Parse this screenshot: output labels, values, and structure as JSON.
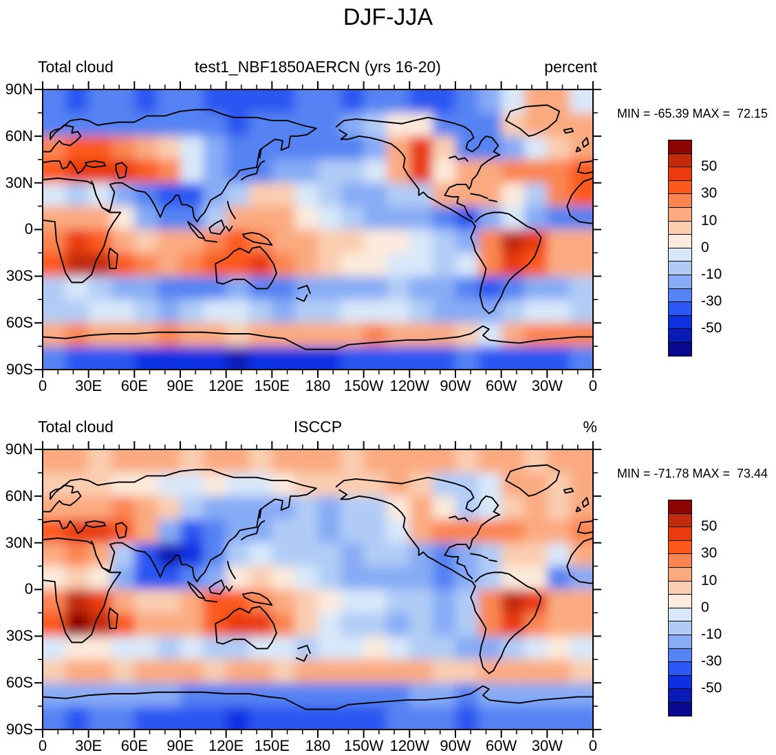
{
  "title": "DJF-JJA",
  "chart_data": {
    "type": "heatmap",
    "description": "Two filled-contour global lat-lon maps of total cloud amount seasonal difference (DJF minus JJA): model run vs ISCCP observations, with blue-red colorbars",
    "shared": {
      "levels": [
        -60,
        -50,
        -40,
        -30,
        -20,
        -10,
        -5,
        0,
        5,
        10,
        20,
        30,
        40,
        50,
        60
      ],
      "colors": [
        "#07098F",
        "#0A1AB6",
        "#0D30E3",
        "#2B57F2",
        "#5583F3",
        "#87ABF5",
        "#B0CCF6",
        "#D8E8FA",
        "#FCEADC",
        "#FACDB0",
        "#FBAA80",
        "#FB8551",
        "#FC5A1C",
        "#E93B0E",
        "#C22B0B",
        "#8E0404"
      ],
      "colorbar_labels": [
        "50",
        "30",
        "10",
        "0",
        "-10",
        "-30",
        "-50"
      ],
      "lat_ticks": [
        "90N",
        "60N",
        "30N",
        "0",
        "30S",
        "60S",
        "90S"
      ],
      "lon_ticks": [
        "0",
        "30E",
        "60E",
        "90E",
        "120E",
        "150E",
        "180",
        "150W",
        "120W",
        "90W",
        "60W",
        "30W",
        "0"
      ],
      "grid": {
        "lon_start": 0,
        "lon_step": 15,
        "lat_start": 90,
        "lat_step": -15,
        "cols": 24,
        "rows": 12
      },
      "coastline_color": "#000000",
      "units": "percent cloud amount difference"
    },
    "panels": [
      {
        "left_title": "Total cloud",
        "center_title": "test1_NBF1850AERCN (yrs 16-20)",
        "right_title": "percent",
        "stats": "MIN = -65.39 MAX =  72.15",
        "min": -65.39,
        "max": 72.15,
        "values": [
          [
            -30,
            -32,
            -30,
            -30,
            -32,
            -30,
            -30,
            -32,
            -35,
            -35,
            -32,
            -30,
            -30,
            -32,
            -30,
            -30,
            -35,
            -32,
            -30,
            -15,
            -5,
            10,
            15,
            -5
          ],
          [
            -25,
            -28,
            -30,
            -25,
            -25,
            -28,
            -30,
            -30,
            -32,
            -30,
            -28,
            -25,
            -25,
            -20,
            -10,
            0,
            0,
            -25,
            -25,
            -25,
            5,
            10,
            10,
            15
          ],
          [
            25,
            30,
            30,
            25,
            15,
            5,
            -5,
            -15,
            -25,
            -30,
            -28,
            -25,
            -28,
            -25,
            -15,
            10,
            40,
            5,
            -25,
            -25,
            -15,
            -5,
            5,
            15
          ],
          [
            35,
            40,
            45,
            45,
            35,
            20,
            -5,
            -15,
            -25,
            -30,
            -20,
            -12,
            -10,
            -10,
            -5,
            15,
            40,
            0,
            10,
            15,
            20,
            20,
            20,
            35
          ],
          [
            -5,
            -8,
            -5,
            -12,
            -28,
            -40,
            -35,
            -18,
            -8,
            5,
            5,
            -5,
            -10,
            -15,
            -12,
            -10,
            -10,
            10,
            10,
            10,
            0,
            -10,
            25,
            30
          ],
          [
            10,
            15,
            10,
            0,
            -12,
            -22,
            -25,
            -10,
            10,
            15,
            10,
            0,
            -5,
            -10,
            -15,
            -15,
            -20,
            -30,
            -35,
            -20,
            -5,
            -15,
            -30,
            -25
          ],
          [
            20,
            45,
            35,
            15,
            8,
            10,
            15,
            25,
            30,
            28,
            18,
            10,
            5,
            5,
            0,
            0,
            -5,
            -10,
            -15,
            20,
            55,
            45,
            15,
            10
          ],
          [
            30,
            55,
            50,
            30,
            20,
            15,
            20,
            30,
            38,
            40,
            25,
            10,
            5,
            0,
            0,
            -5,
            -5,
            -10,
            -5,
            25,
            45,
            30,
            15,
            15
          ],
          [
            -10,
            -5,
            -10,
            -15,
            -20,
            -22,
            -25,
            -25,
            -20,
            -25,
            -25,
            -20,
            -20,
            -15,
            -15,
            -10,
            -15,
            -20,
            -25,
            -35,
            -30,
            -20,
            -15,
            -10
          ],
          [
            -10,
            -8,
            -5,
            -5,
            -10,
            -12,
            -10,
            -5,
            -5,
            -10,
            -15,
            -10,
            -10,
            -5,
            -5,
            -5,
            -10,
            -12,
            -15,
            -20,
            -10,
            -5,
            -5,
            -10
          ],
          [
            15,
            20,
            15,
            10,
            15,
            20,
            15,
            10,
            5,
            10,
            15,
            10,
            10,
            15,
            20,
            15,
            10,
            15,
            5,
            -5,
            10,
            20,
            25,
            20
          ],
          [
            -30,
            -35,
            -35,
            -40,
            -42,
            -45,
            -45,
            -50,
            -55,
            -50,
            -45,
            -42,
            -45,
            -40,
            -38,
            -35,
            -40,
            -35,
            -30,
            -35,
            -40,
            -35,
            -32,
            -30
          ]
        ]
      },
      {
        "left_title": "Total cloud",
        "center_title": "ISCCP",
        "right_title": "%",
        "stats": "MIN = -71.78 MAX =  73.44",
        "min": -71.78,
        "max": 73.44,
        "values": [
          [
            10,
            10,
            8,
            10,
            12,
            10,
            8,
            10,
            10,
            8,
            10,
            12,
            10,
            8,
            10,
            10,
            12,
            10,
            8,
            10,
            10,
            8,
            10,
            10
          ],
          [
            5,
            5,
            5,
            0,
            0,
            -5,
            -5,
            0,
            -5,
            -5,
            0,
            5,
            5,
            5,
            8,
            10,
            5,
            -10,
            -10,
            -5,
            10,
            10,
            5,
            10
          ],
          [
            10,
            10,
            15,
            20,
            15,
            5,
            -10,
            -15,
            -20,
            -15,
            -15,
            -10,
            -12,
            -10,
            -8,
            0,
            10,
            0,
            -10,
            -5,
            5,
            10,
            8,
            10
          ],
          [
            30,
            45,
            45,
            30,
            10,
            -20,
            -35,
            -30,
            -20,
            -15,
            -10,
            -10,
            -12,
            -10,
            -8,
            -5,
            15,
            20,
            20,
            20,
            20,
            15,
            10,
            20
          ],
          [
            15,
            20,
            10,
            -10,
            -40,
            -55,
            -45,
            -25,
            -10,
            -5,
            -10,
            -10,
            -10,
            -15,
            -10,
            -10,
            -15,
            -25,
            -15,
            -10,
            5,
            5,
            -5,
            10
          ],
          [
            0,
            5,
            0,
            -15,
            -35,
            -40,
            -30,
            -15,
            0,
            5,
            0,
            -5,
            -10,
            -15,
            -15,
            -15,
            -20,
            -30,
            -20,
            -10,
            0,
            0,
            -30,
            -20
          ],
          [
            20,
            55,
            40,
            10,
            5,
            5,
            15,
            35,
            35,
            25,
            15,
            5,
            0,
            -5,
            -5,
            -10,
            -10,
            -15,
            -10,
            25,
            55,
            40,
            15,
            10
          ],
          [
            35,
            65,
            55,
            35,
            15,
            10,
            15,
            30,
            45,
            40,
            20,
            5,
            -5,
            -10,
            -10,
            -15,
            -10,
            -15,
            -10,
            20,
            45,
            25,
            10,
            15
          ],
          [
            -5,
            0,
            0,
            -5,
            -5,
            -10,
            -5,
            -10,
            -10,
            -5,
            -5,
            -10,
            -5,
            -5,
            0,
            -5,
            -10,
            -10,
            -15,
            -15,
            -10,
            -5,
            0,
            -5
          ],
          [
            5,
            10,
            10,
            5,
            10,
            10,
            10,
            5,
            10,
            10,
            5,
            10,
            10,
            15,
            10,
            10,
            10,
            5,
            5,
            10,
            15,
            10,
            10,
            5
          ],
          [
            -15,
            -20,
            -20,
            -15,
            -15,
            -20,
            -25,
            -25,
            -30,
            -30,
            -25,
            -25,
            -30,
            -25,
            -25,
            -25,
            -20,
            -20,
            -25,
            -20,
            -15,
            -20,
            -20,
            -15
          ],
          [
            -30,
            -35,
            -30,
            -30,
            -35,
            -35,
            -40,
            -40,
            -45,
            -40,
            -40,
            -35,
            -40,
            -35,
            -35,
            -30,
            -30,
            -30,
            -35,
            -30,
            -30,
            -30,
            -25,
            -30
          ]
        ]
      }
    ]
  }
}
